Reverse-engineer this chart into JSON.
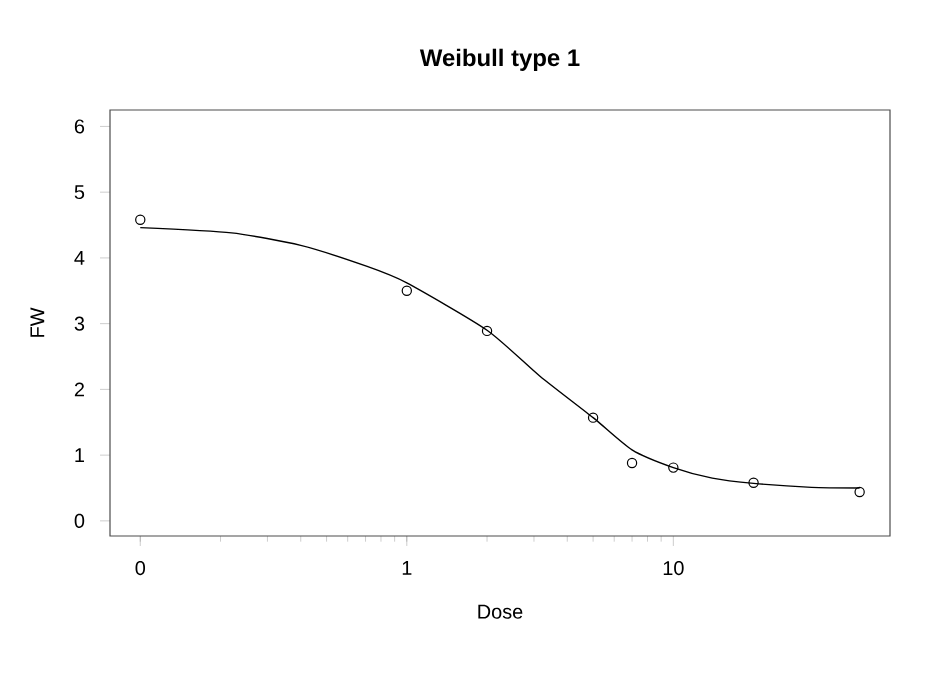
{
  "chart_data": {
    "type": "scatter",
    "title": "Weibull type 1",
    "xlabel": "Dose",
    "ylabel": "FW",
    "log": "x",
    "grid": false,
    "xlim": [
      0.077,
      65
    ],
    "ylim": [
      -0.23,
      6.25
    ],
    "xticks": [
      {
        "value": 0.1,
        "label": "0"
      },
      1,
      10
    ],
    "yticks": [
      0,
      1,
      2,
      3,
      4,
      5,
      6
    ],
    "series": [
      {
        "marker": "circle",
        "color": "#000000",
        "x": [
          0.1,
          1,
          2,
          5,
          7,
          10,
          20,
          50
        ],
        "values": [
          4.58,
          3.5,
          2.89,
          1.57,
          0.88,
          0.81,
          0.58,
          0.44
        ]
      },
      {
        "type": "line",
        "marker": "none",
        "color": "#000000",
        "x": [
          0.1,
          0.22,
          0.4,
          0.71,
          1,
          2,
          3.16,
          5,
          7,
          10,
          14,
          20,
          33,
          50
        ],
        "values": [
          4.46,
          4.38,
          4.19,
          3.87,
          3.62,
          2.9,
          2.2,
          1.57,
          1.08,
          0.81,
          0.65,
          0.57,
          0.51,
          0.5
        ]
      }
    ]
  }
}
